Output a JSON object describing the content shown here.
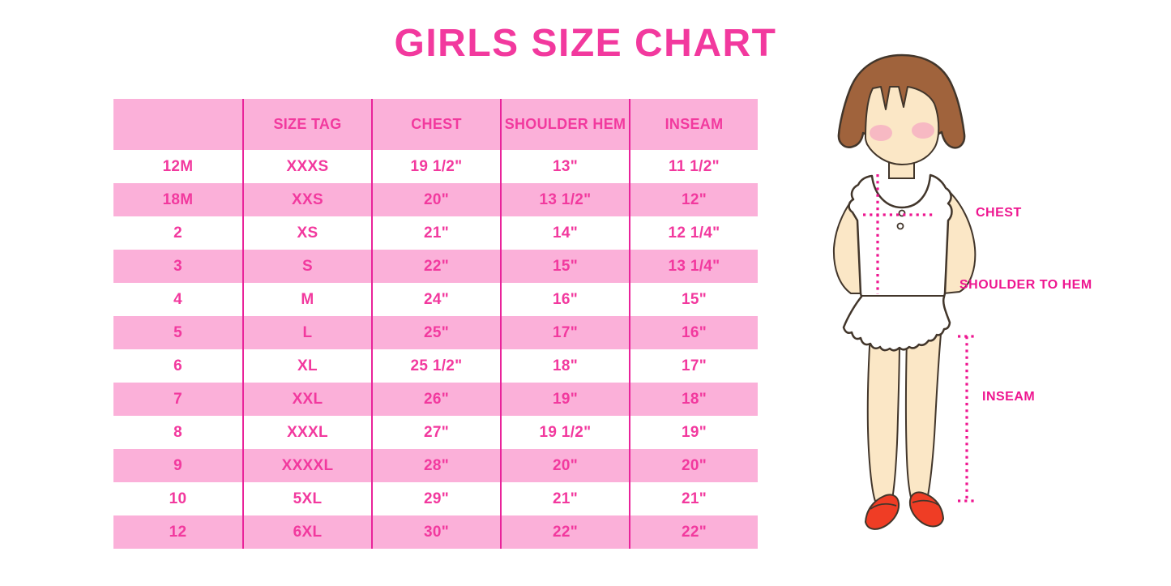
{
  "title": "GIRLS SIZE CHART",
  "colors": {
    "title_pink": "#F2399E",
    "row_pink": "#FBB0D9",
    "column_line": "#E9239A",
    "annotation_pink": "#EE1690"
  },
  "table": {
    "headers": [
      "",
      "SIZE TAG",
      "CHEST",
      "SHOULDER HEM",
      "INSEAM"
    ],
    "rows": [
      [
        "12M",
        "XXXS",
        "19 1/2\"",
        "13\"",
        "11 1/2\""
      ],
      [
        "18M",
        "XXS",
        "20\"",
        "13 1/2\"",
        "12\""
      ],
      [
        "2",
        "XS",
        "21\"",
        "14\"",
        "12 1/4\""
      ],
      [
        "3",
        "S",
        "22\"",
        "15\"",
        "13 1/4\""
      ],
      [
        "4",
        "M",
        "24\"",
        "16\"",
        "15\""
      ],
      [
        "5",
        "L",
        "25\"",
        "17\"",
        "16\""
      ],
      [
        "6",
        "XL",
        "25 1/2\"",
        "18\"",
        "17\""
      ],
      [
        "7",
        "XXL",
        "26\"",
        "19\"",
        "18\""
      ],
      [
        "8",
        "XXXL",
        "27\"",
        "19 1/2\"",
        "19\""
      ],
      [
        "9",
        "XXXXL",
        "28\"",
        "20\"",
        "20\""
      ],
      [
        "10",
        "5XL",
        "29\"",
        "21\"",
        "21\""
      ],
      [
        "12",
        "6XL",
        "30\"",
        "22\"",
        "22\""
      ]
    ]
  },
  "annotations": {
    "chest": "CHEST",
    "shoulder_to_hem": "SHOULDER TO HEM",
    "inseam": "INSEAM"
  }
}
